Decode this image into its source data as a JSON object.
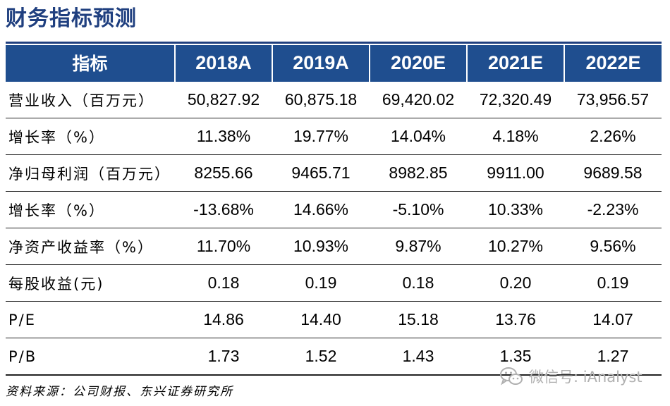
{
  "title": "财务指标预测",
  "table": {
    "header": [
      "指标",
      "2018A",
      "2019A",
      "2020E",
      "2021E",
      "2022E"
    ],
    "rows": [
      {
        "label": "营业收入（百万元）",
        "values": [
          "50,827.92",
          "60,875.18",
          "69,420.02",
          "72,320.49",
          "73,956.57"
        ]
      },
      {
        "label": "增长率（%）",
        "values": [
          "11.38%",
          "19.77%",
          "14.04%",
          "4.18%",
          "2.26%"
        ]
      },
      {
        "label": "净归母利润（百万元）",
        "values": [
          "8255.66",
          "9465.71",
          "8982.85",
          "9911.00",
          "9689.58"
        ]
      },
      {
        "label": "增长率（%）",
        "values": [
          "-13.68%",
          "14.66%",
          "-5.10%",
          "10.33%",
          "-2.23%"
        ]
      },
      {
        "label": "净资产收益率（%）",
        "values": [
          "11.70%",
          "10.93%",
          "9.87%",
          "10.27%",
          "9.56%"
        ]
      },
      {
        "label": "每股收益(元)",
        "values": [
          "0.18",
          "0.19",
          "0.18",
          "0.20",
          "0.19"
        ]
      },
      {
        "label": "P/E",
        "values": [
          "14.86",
          "14.40",
          "15.18",
          "13.76",
          "14.07"
        ]
      },
      {
        "label": "P/B",
        "values": [
          "1.73",
          "1.52",
          "1.43",
          "1.35",
          "1.27"
        ]
      }
    ]
  },
  "source": "资料来源：公司财报、东兴证券研究所",
  "watermark": {
    "icon": "wechat-icon",
    "text": "微信号: iAnalyst"
  },
  "colors": {
    "title": "#1f3f7f",
    "header_bg": "#1f4e8f",
    "header_text": "#ffffff",
    "watermark": "#b0b0b0"
  }
}
